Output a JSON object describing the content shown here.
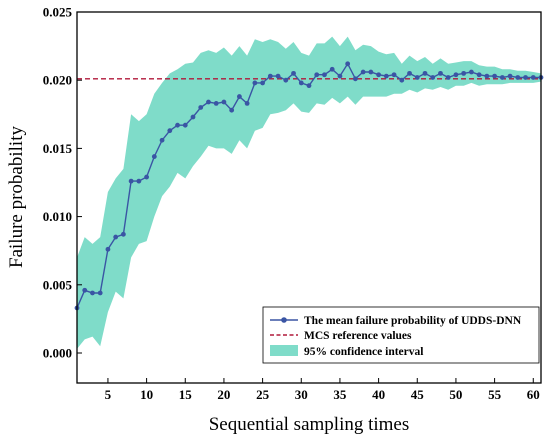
{
  "chart_data": {
    "type": "line",
    "xlabel": "Sequential sampling times",
    "ylabel": "Failure probability",
    "xlim": [
      1,
      61
    ],
    "ylim": [
      -0.0022,
      0.025
    ],
    "xticks": [
      5,
      10,
      15,
      20,
      25,
      30,
      35,
      40,
      45,
      50,
      55,
      60
    ],
    "yticks": [
      0.0,
      0.005,
      0.01,
      0.015,
      0.02,
      0.025
    ],
    "ytick_labels": [
      "0.000",
      "0.005",
      "0.010",
      "0.015",
      "0.020",
      "0.025"
    ],
    "grid": false,
    "legend_position": "bottom-right",
    "series": [
      {
        "name": "The mean failure probability of UDDS-DNN",
        "kind": "line-markers",
        "color": "#3a55a4",
        "x": [
          1,
          2,
          3,
          4,
          5,
          6,
          7,
          8,
          9,
          10,
          11,
          12,
          13,
          14,
          15,
          16,
          17,
          18,
          19,
          20,
          21,
          22,
          23,
          24,
          25,
          26,
          27,
          28,
          29,
          30,
          31,
          32,
          33,
          34,
          35,
          36,
          37,
          38,
          39,
          40,
          41,
          42,
          43,
          44,
          45,
          46,
          47,
          48,
          49,
          50,
          51,
          52,
          53,
          54,
          55,
          56,
          57,
          58,
          59,
          60,
          61
        ],
        "y": [
          0.0033,
          0.0046,
          0.0044,
          0.0044,
          0.0076,
          0.0085,
          0.0087,
          0.0126,
          0.0126,
          0.0129,
          0.0144,
          0.0156,
          0.0163,
          0.0167,
          0.0167,
          0.0173,
          0.018,
          0.0184,
          0.0183,
          0.0184,
          0.0178,
          0.0188,
          0.0183,
          0.0198,
          0.0198,
          0.0203,
          0.0203,
          0.02,
          0.0205,
          0.0198,
          0.0196,
          0.0204,
          0.0204,
          0.0208,
          0.0203,
          0.0212,
          0.0201,
          0.0206,
          0.0206,
          0.0204,
          0.0203,
          0.0204,
          0.02,
          0.0205,
          0.0202,
          0.0205,
          0.0202,
          0.0205,
          0.0202,
          0.0204,
          0.0205,
          0.0206,
          0.0204,
          0.0203,
          0.0203,
          0.0202,
          0.0203,
          0.0202,
          0.0202,
          0.0202,
          0.0202
        ]
      },
      {
        "name": "MCS reference values",
        "kind": "dashed",
        "color": "#b0183a",
        "value": 0.0201
      },
      {
        "name": "95% confidence interval",
        "kind": "band",
        "color": "#7fdcc9",
        "x": [
          1,
          2,
          3,
          4,
          5,
          6,
          7,
          8,
          9,
          10,
          11,
          12,
          13,
          14,
          15,
          16,
          17,
          18,
          19,
          20,
          21,
          22,
          23,
          24,
          25,
          26,
          27,
          28,
          29,
          30,
          31,
          32,
          33,
          34,
          35,
          36,
          37,
          38,
          39,
          40,
          41,
          42,
          43,
          44,
          45,
          46,
          47,
          48,
          49,
          50,
          51,
          52,
          53,
          54,
          55,
          56,
          57,
          58,
          59,
          60,
          61
        ],
        "lower": [
          0.0003,
          0.001,
          0.0012,
          0.0005,
          0.003,
          0.0045,
          0.004,
          0.007,
          0.008,
          0.0082,
          0.01,
          0.0115,
          0.0122,
          0.0132,
          0.0128,
          0.0137,
          0.0144,
          0.0152,
          0.015,
          0.015,
          0.0146,
          0.0156,
          0.015,
          0.0163,
          0.0165,
          0.0175,
          0.0176,
          0.0178,
          0.0183,
          0.0177,
          0.0176,
          0.0183,
          0.0182,
          0.0187,
          0.0183,
          0.0188,
          0.0182,
          0.0188,
          0.0188,
          0.0188,
          0.0188,
          0.019,
          0.019,
          0.0193,
          0.0191,
          0.0194,
          0.0193,
          0.0195,
          0.0193,
          0.0196,
          0.0196,
          0.0198,
          0.0196,
          0.0197,
          0.0197,
          0.0197,
          0.0198,
          0.0198,
          0.0198,
          0.0198,
          0.0199
        ],
        "upper": [
          0.007,
          0.0085,
          0.008,
          0.0085,
          0.0118,
          0.0128,
          0.0135,
          0.0175,
          0.017,
          0.0175,
          0.019,
          0.0198,
          0.0205,
          0.0208,
          0.0212,
          0.0213,
          0.022,
          0.0222,
          0.022,
          0.0224,
          0.0218,
          0.0225,
          0.0218,
          0.023,
          0.0228,
          0.023,
          0.0228,
          0.0223,
          0.0228,
          0.022,
          0.0218,
          0.0227,
          0.0227,
          0.0232,
          0.0225,
          0.0232,
          0.0222,
          0.0226,
          0.0225,
          0.0221,
          0.0219,
          0.022,
          0.0212,
          0.0218,
          0.0214,
          0.0217,
          0.0212,
          0.0216,
          0.0212,
          0.0213,
          0.0214,
          0.0214,
          0.0211,
          0.021,
          0.021,
          0.0208,
          0.0208,
          0.0207,
          0.0207,
          0.0206,
          0.0205
        ]
      }
    ]
  }
}
